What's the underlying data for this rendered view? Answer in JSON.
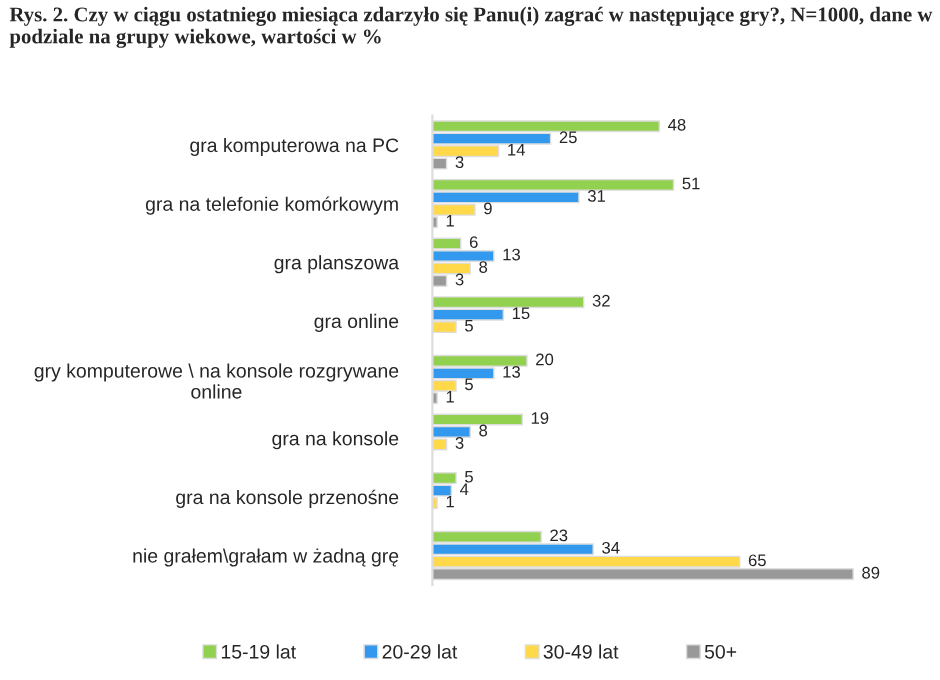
{
  "chart_data": {
    "type": "bar",
    "orientation": "horizontal",
    "title": "Rys. 2. Czy w ciągu ostatniego miesiąca zdarzyło się Panu(i) zagrać w następujące gry?, N=1000, dane w podziale na grupy wiekowe, wartości w %",
    "categories": [
      "gra komputerowa na PC",
      "gra na telefonie komórkowym",
      "gra planszowa",
      "gra online",
      "gry komputerowe \\ na konsole rozgrywane online",
      "gra na konsole",
      "gra na konsole przenośne",
      "nie grałem\\grałam w żadną grę"
    ],
    "series": [
      {
        "name": "15-19 lat",
        "color": "#92d050",
        "values": [
          48,
          51,
          6,
          32,
          20,
          19,
          5,
          23
        ]
      },
      {
        "name": "20-29 lat",
        "color": "#3399ee",
        "values": [
          25,
          31,
          13,
          15,
          13,
          8,
          4,
          34
        ]
      },
      {
        "name": "30-49 lat",
        "color": "#ffd94a",
        "values": [
          14,
          9,
          8,
          5,
          5,
          3,
          1,
          65
        ]
      },
      {
        "name": "50+",
        "color": "#999999",
        "values": [
          3,
          1,
          3,
          null,
          1,
          null,
          null,
          89
        ]
      }
    ],
    "data_labels": true,
    "legend": "bottom",
    "grid": false
  }
}
